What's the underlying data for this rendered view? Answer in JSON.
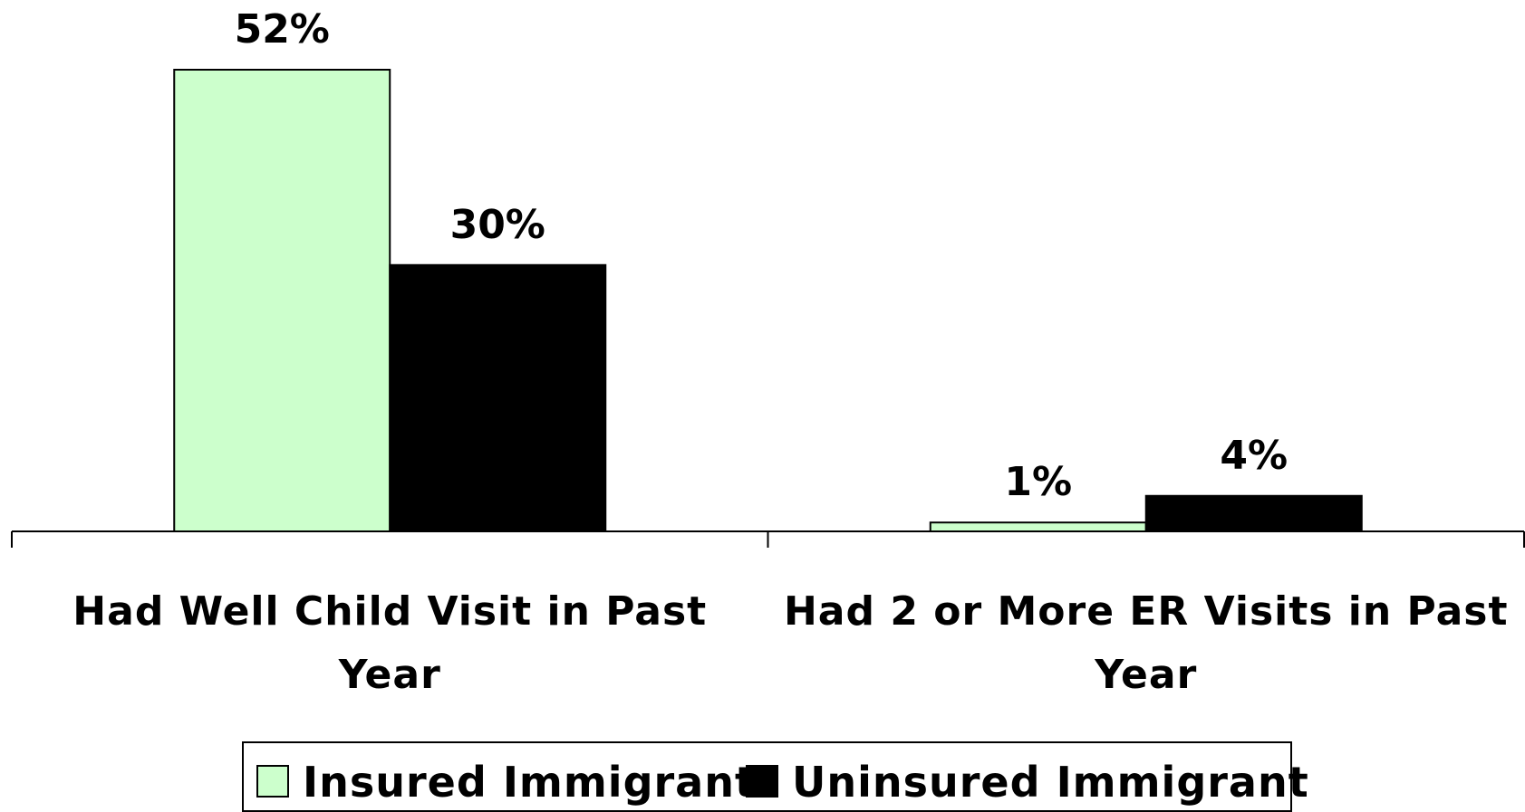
{
  "chart_data": {
    "type": "bar",
    "categories": [
      [
        "Had Well Child Visit in Past",
        "Year"
      ],
      [
        "Had 2 or More ER Visits in Past",
        "Year"
      ]
    ],
    "series": [
      {
        "name": "Insured Immigrant",
        "values": [
          52,
          1
        ],
        "labels": [
          "52%",
          "1%"
        ],
        "color": "#ccffcc"
      },
      {
        "name": "Uninsured Immigrant",
        "values": [
          30,
          4
        ],
        "labels": [
          "30%",
          "4%"
        ],
        "color": "#000000"
      }
    ],
    "ylim": [
      0,
      52
    ],
    "grid": false,
    "legend_position": "bottom",
    "title": "",
    "xlabel": "",
    "ylabel": ""
  }
}
